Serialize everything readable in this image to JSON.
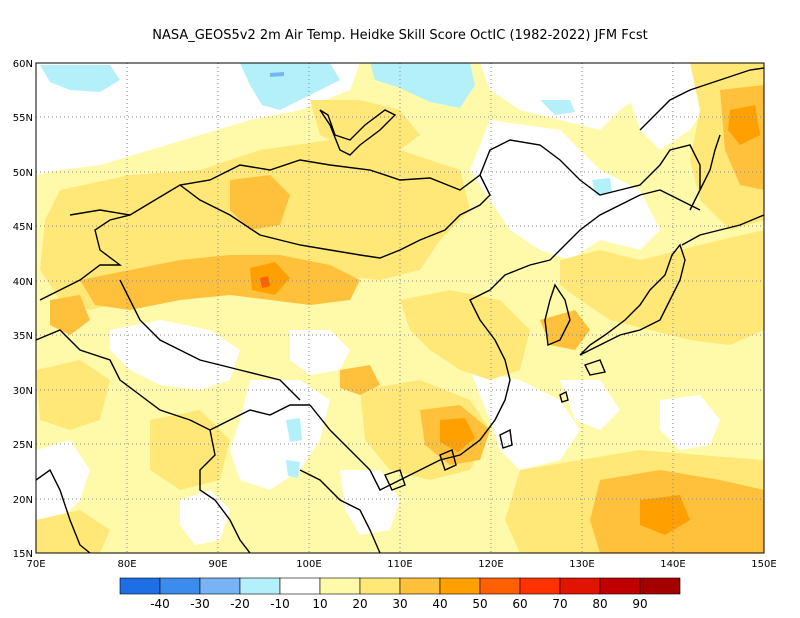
{
  "title": "NASA_GEOS5v2  2m Air Temp. Heidke Skill Score OctIC (1982-2022) JFM Fcst",
  "map": {
    "lon_range": [
      70,
      150
    ],
    "lat_range": [
      15,
      60
    ],
    "lon_ticks": [
      "70E",
      "80E",
      "90E",
      "100E",
      "110E",
      "120E",
      "130E",
      "140E",
      "150E"
    ],
    "lat_ticks": [
      "15N",
      "20N",
      "25N",
      "30N",
      "35N",
      "40N",
      "45N",
      "50N",
      "55N",
      "60N"
    ],
    "grid": "dotted",
    "background_color": "#ffffff",
    "coastline_color": "#000000"
  },
  "colorbar": {
    "colors": [
      "#1e6ee6",
      "#3c8ced",
      "#78b4f5",
      "#b4f0fa",
      "#ffffff",
      "#fffaaa",
      "#ffe878",
      "#ffc03c",
      "#ffa000",
      "#ff6000",
      "#ff3200",
      "#e11400",
      "#c00000",
      "#a50000"
    ],
    "labels": [
      "-40",
      "-30",
      "-20",
      "-10",
      "10",
      "20",
      "30",
      "40",
      "50",
      "60",
      "70",
      "80",
      "90"
    ]
  }
}
